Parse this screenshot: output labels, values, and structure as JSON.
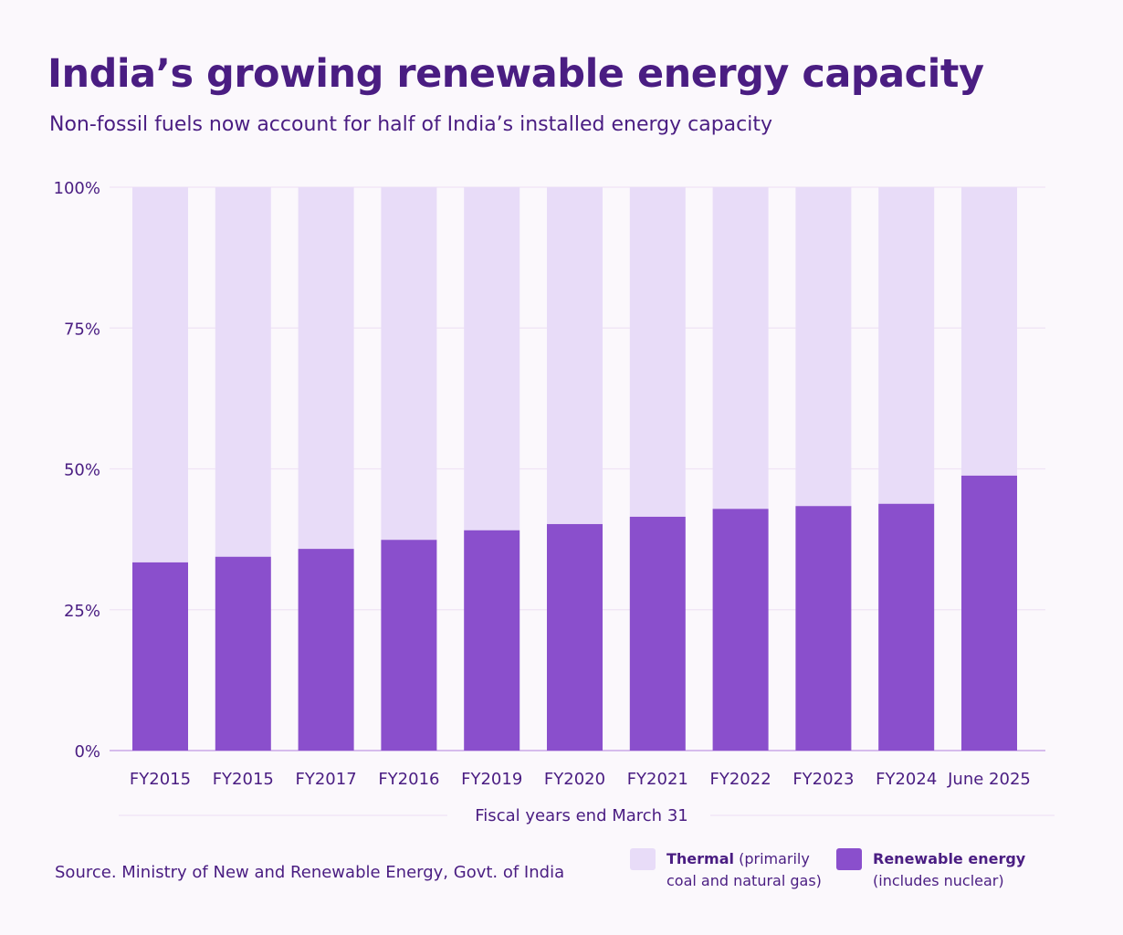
{
  "title": "India’s growing renewable energy capacity",
  "subtitle": "Non-fossil fuels now account for half of India’s installed energy capacity",
  "source": "Source. Ministry of New and Renewable Energy, Govt. of India",
  "legend": {
    "thermal_bold": "Thermal",
    "thermal_rest": " (primarily",
    "thermal_line2": "coal and natural gas)",
    "renewable_bold": "Renewable energy",
    "renewable_line2": "(includes nuclear)"
  },
  "colors": {
    "thermal": "#e8dcf8",
    "renewable": "#8a4fcc",
    "text": "#4a1d82",
    "grid": "#efe3f5"
  },
  "chart_data": {
    "type": "bar",
    "stacked": true,
    "title": "India’s growing renewable energy capacity",
    "xlabel": "Fiscal years end March 31",
    "ylabel": "",
    "ylim": [
      0,
      100
    ],
    "yticks": [
      "0%",
      "25%",
      "50%",
      "75%",
      "100%"
    ],
    "ytick_values": [
      0,
      25,
      50,
      75,
      100
    ],
    "categories": [
      "FY2015",
      "FY2015",
      "FY2017",
      "FY2016",
      "FY2019",
      "FY2020",
      "FY2021",
      "FY2022",
      "FY2023",
      "FY2024",
      "June 2025"
    ],
    "series": [
      {
        "name": "Renewable energy (includes nuclear)",
        "values": [
          33.4,
          34.4,
          35.8,
          37.4,
          39.1,
          40.2,
          41.5,
          42.9,
          43.4,
          43.8,
          48.8
        ]
      },
      {
        "name": "Thermal (primarily coal and natural gas)",
        "values": [
          66.6,
          65.6,
          64.2,
          62.6,
          60.9,
          59.8,
          58.5,
          57.1,
          56.6,
          56.2,
          51.2
        ]
      }
    ],
    "legend_position": "bottom-right",
    "grid": true
  }
}
